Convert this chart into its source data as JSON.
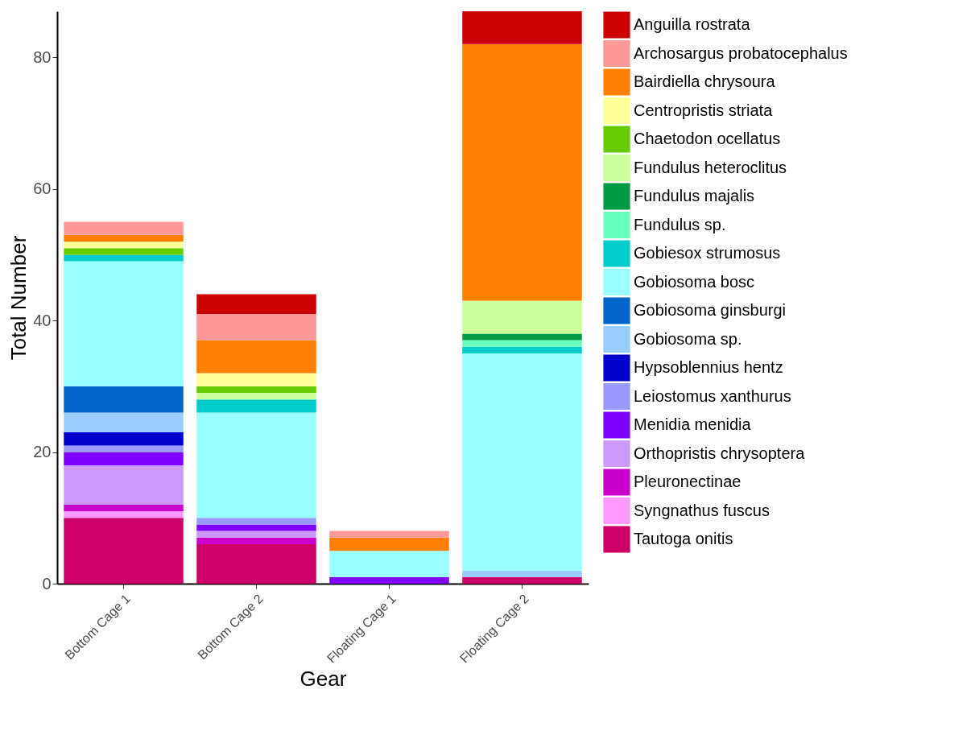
{
  "chart_data": {
    "type": "bar",
    "stacked": true,
    "xlabel": "Gear",
    "ylabel": "Total Number",
    "categories": [
      "Bottom Cage 1",
      "Bottom Cage 2",
      "Floating Cage 1",
      "Floating Cage 2"
    ],
    "ylim": [
      0,
      87
    ],
    "yticks": [
      0,
      20,
      40,
      60,
      80
    ],
    "grid": false,
    "legend": "right",
    "series": [
      {
        "name": "Tautoga onitis",
        "color": "#cc0066",
        "values": [
          10,
          6,
          0,
          1
        ]
      },
      {
        "name": "Syngnathus fuscus",
        "color": "#ff99ff",
        "values": [
          1,
          0,
          0,
          0
        ]
      },
      {
        "name": "Pleuronectinae",
        "color": "#cc00cc",
        "values": [
          1,
          1,
          0,
          0
        ]
      },
      {
        "name": "Orthopristis chrysoptera",
        "color": "#cc99ff",
        "values": [
          6,
          1,
          0,
          0
        ]
      },
      {
        "name": "Menidia menidia",
        "color": "#7f00ff",
        "values": [
          2,
          1,
          1,
          0
        ]
      },
      {
        "name": "Leiostomus xanthurus",
        "color": "#9999ff",
        "values": [
          1,
          1,
          0,
          0
        ]
      },
      {
        "name": "Hypsoblennius hentz",
        "color": "#0000cc",
        "values": [
          2,
          0,
          0,
          0
        ]
      },
      {
        "name": "Gobiosoma sp.",
        "color": "#99ccff",
        "values": [
          3,
          0,
          0,
          1
        ]
      },
      {
        "name": "Gobiosoma ginsburgi",
        "color": "#0066cc",
        "values": [
          4,
          0,
          0,
          0
        ]
      },
      {
        "name": "Gobiosoma bosc",
        "color": "#99ffff",
        "values": [
          19,
          16,
          4,
          33
        ]
      },
      {
        "name": "Gobiesox strumosus",
        "color": "#00cccc",
        "values": [
          1,
          2,
          0,
          1
        ]
      },
      {
        "name": "Fundulus sp.",
        "color": "#66ffbb",
        "values": [
          0,
          0,
          0,
          1
        ]
      },
      {
        "name": "Fundulus majalis",
        "color": "#009944",
        "values": [
          0,
          0,
          0,
          1
        ]
      },
      {
        "name": "Fundulus heteroclitus",
        "color": "#ccff99",
        "values": [
          0,
          1,
          0,
          5
        ]
      },
      {
        "name": "Chaetodon ocellatus",
        "color": "#66cc00",
        "values": [
          1,
          1,
          0,
          0
        ]
      },
      {
        "name": "Centropristis striata",
        "color": "#ffff99",
        "values": [
          1,
          2,
          0,
          0
        ]
      },
      {
        "name": "Bairdiella chrysoura",
        "color": "#ff8000",
        "values": [
          1,
          5,
          2,
          39
        ]
      },
      {
        "name": "Archosargus probatocephalus",
        "color": "#ff9999",
        "values": [
          2,
          4,
          1,
          0
        ]
      },
      {
        "name": "Anguilla rostrata",
        "color": "#cc0000",
        "values": [
          0,
          3,
          0,
          5
        ]
      }
    ]
  }
}
